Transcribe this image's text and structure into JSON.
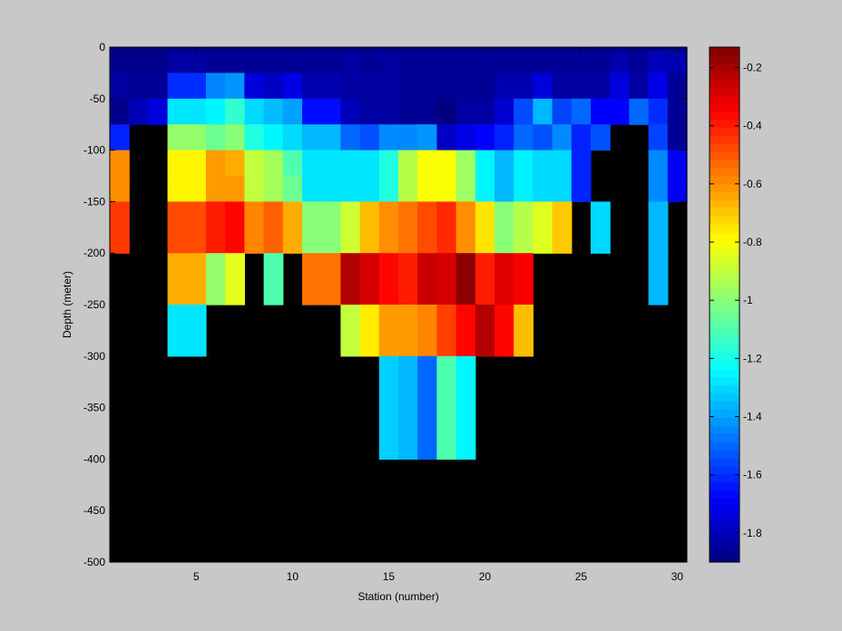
{
  "chart_data": {
    "type": "heatmap",
    "title": "",
    "xlabel": "Station (number)",
    "ylabel": "Depth (meter)",
    "xlim": [
      0.5,
      30.5
    ],
    "ylim": [
      -500,
      0
    ],
    "x_ticks": [
      "5",
      "10",
      "15",
      "20",
      "25",
      "30"
    ],
    "y_ticks": [
      "0",
      "-50",
      "-100",
      "-150",
      "-200",
      "-250",
      "-300",
      "-350",
      "-400",
      "-450",
      "-500"
    ],
    "colorbar": {
      "colormap": "jet",
      "clim": [
        -1.9,
        -0.13
      ],
      "tick_labels": [
        "-0.2",
        "-0.4",
        "-0.6",
        "-0.8",
        "-1",
        "-1.2",
        "-1.4",
        "-1.6",
        "-1.8"
      ]
    },
    "no_data_color": "#000000",
    "depth_layers_m": [
      [
        0,
        -4
      ],
      [
        -4,
        -25
      ],
      [
        -25,
        -50
      ],
      [
        -50,
        -75
      ],
      [
        -75,
        -100
      ],
      [
        -100,
        -125
      ],
      [
        -125,
        -150
      ],
      [
        -150,
        -200
      ],
      [
        -200,
        -250
      ],
      [
        -250,
        -300
      ],
      [
        -300,
        -400
      ],
      [
        -400,
        -500
      ]
    ],
    "stations": [
      1,
      2,
      3,
      4,
      5,
      6,
      7,
      8,
      9,
      10,
      11,
      12,
      13,
      14,
      15,
      16,
      17,
      18,
      19,
      20,
      21,
      22,
      23,
      24,
      25,
      26,
      27,
      28,
      29,
      30
    ],
    "values": [
      [
        -1.9,
        -1.9,
        -1.9,
        -1.9,
        -1.9,
        -1.9,
        -1.9,
        -1.9,
        -1.9,
        -1.9,
        -1.9,
        -1.9,
        -1.9,
        -1.9,
        -1.9,
        -1.9,
        -1.9,
        -1.9,
        -1.9,
        -1.9,
        -1.9,
        -1.9,
        -1.9,
        -1.9,
        -1.9,
        -1.9,
        -1.9,
        -1.9,
        -1.9,
        -1.9
      ],
      [
        -1.88,
        -1.88,
        -1.88,
        -1.84,
        -1.84,
        -1.86,
        -1.86,
        -1.86,
        -1.86,
        -1.86,
        -1.86,
        -1.86,
        -1.84,
        -1.86,
        -1.84,
        -1.86,
        -1.86,
        -1.86,
        -1.86,
        -1.86,
        -1.86,
        -1.86,
        -1.86,
        -1.86,
        -1.86,
        -1.86,
        -1.82,
        -1.86,
        -1.8,
        -1.82
      ],
      [
        -1.84,
        -1.86,
        -1.86,
        -1.6,
        -1.6,
        -1.45,
        -1.42,
        -1.74,
        -1.78,
        -1.72,
        -1.82,
        -1.82,
        -1.84,
        -1.84,
        -1.84,
        -1.86,
        -1.86,
        -1.86,
        -1.86,
        -1.86,
        -1.82,
        -1.82,
        -1.74,
        -1.84,
        -1.84,
        -1.84,
        -1.74,
        -1.84,
        -1.72,
        -1.86
      ],
      [
        -1.88,
        -1.8,
        -1.74,
        -1.28,
        -1.28,
        -1.25,
        -1.15,
        -1.3,
        -1.35,
        -1.4,
        -1.66,
        -1.66,
        -1.8,
        -1.84,
        -1.84,
        -1.86,
        -1.86,
        -1.9,
        -1.84,
        -1.84,
        -1.76,
        -1.55,
        -1.36,
        -1.56,
        -1.5,
        -1.68,
        -1.68,
        -1.5,
        -1.6,
        -1.86
      ],
      [
        -1.62,
        null,
        null,
        -0.98,
        -0.98,
        -1.05,
        -1.0,
        -1.18,
        -1.25,
        -1.3,
        -1.36,
        -1.36,
        -1.5,
        -1.54,
        -1.44,
        -1.44,
        -1.42,
        -1.78,
        -1.72,
        -1.68,
        -1.62,
        -1.5,
        -1.54,
        -1.44,
        -1.62,
        -1.54,
        null,
        null,
        -1.56,
        -1.86
      ],
      [
        -0.6,
        null,
        null,
        -0.78,
        -0.78,
        -0.62,
        -0.65,
        -0.9,
        -0.95,
        -1.1,
        -1.28,
        -1.28,
        -1.28,
        -1.28,
        -1.18,
        -0.92,
        -0.8,
        -0.8,
        -0.96,
        -1.25,
        -1.36,
        -1.26,
        -1.3,
        -1.3,
        -1.62,
        null,
        null,
        null,
        -1.44,
        -1.7
      ],
      [
        -0.6,
        null,
        null,
        -0.78,
        -0.78,
        -0.62,
        -0.62,
        -0.9,
        -0.95,
        -1.05,
        -1.28,
        -1.28,
        -1.28,
        -1.28,
        -1.18,
        -0.92,
        -0.8,
        -0.8,
        -0.96,
        -1.25,
        -1.36,
        -1.26,
        -1.3,
        -1.3,
        -1.62,
        null,
        null,
        null,
        -1.44,
        -1.7
      ],
      [
        -0.45,
        null,
        null,
        -0.48,
        -0.48,
        -0.4,
        -0.36,
        -0.58,
        -0.52,
        -0.65,
        -1.0,
        -1.0,
        -0.88,
        -0.68,
        -0.6,
        -0.55,
        -0.48,
        -0.42,
        -0.6,
        -0.75,
        -1.0,
        -0.92,
        -0.85,
        -0.7,
        null,
        -1.3,
        null,
        null,
        -1.36,
        null
      ],
      [
        null,
        null,
        null,
        -0.65,
        -0.65,
        -0.98,
        -0.84,
        null,
        -1.1,
        null,
        -0.55,
        -0.55,
        -0.22,
        -0.28,
        -0.36,
        -0.4,
        -0.26,
        -0.28,
        -0.15,
        -0.4,
        -0.3,
        -0.34,
        null,
        null,
        null,
        null,
        null,
        null,
        -1.36,
        null
      ],
      [
        null,
        null,
        null,
        -1.28,
        -1.28,
        null,
        null,
        null,
        null,
        null,
        null,
        null,
        -0.9,
        -0.76,
        -0.62,
        -0.62,
        -0.58,
        -0.46,
        -0.36,
        -0.22,
        -0.36,
        -0.68,
        null,
        null,
        null,
        null,
        null,
        null,
        null,
        null
      ],
      [
        null,
        null,
        null,
        null,
        null,
        null,
        null,
        null,
        null,
        null,
        null,
        null,
        null,
        null,
        -1.32,
        -1.36,
        -1.5,
        -1.1,
        -1.25,
        null,
        null,
        null,
        null,
        null,
        null,
        null,
        null,
        null,
        null,
        null
      ],
      [
        null,
        null,
        null,
        null,
        null,
        null,
        null,
        null,
        null,
        null,
        null,
        null,
        null,
        null,
        null,
        null,
        null,
        null,
        null,
        null,
        null,
        null,
        null,
        null,
        null,
        null,
        null,
        null,
        null,
        null
      ]
    ]
  }
}
